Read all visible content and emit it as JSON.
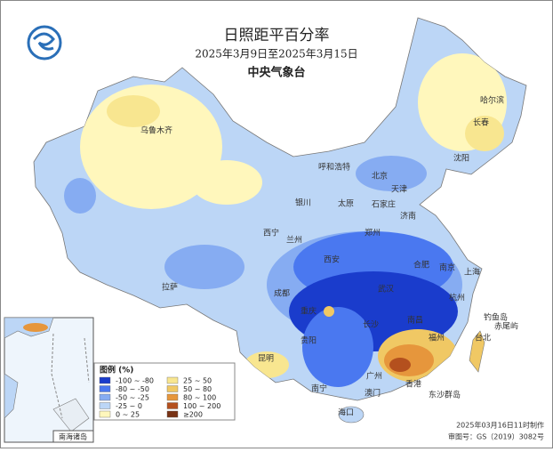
{
  "header": {
    "title": "日照距平百分率",
    "period": "2025年3月9日至2025年3月15日",
    "agency": "中央气象台"
  },
  "legend": {
    "title": "图例 (%)",
    "items": [
      {
        "label": "-100 ~ -80",
        "color": "#1a3ccc"
      },
      {
        "label": "-80 ~ -50",
        "color": "#4a78f0"
      },
      {
        "label": "-50 ~ -25",
        "color": "#86acf2"
      },
      {
        "label": "-25 ~ 0",
        "color": "#bcd6f6"
      },
      {
        "label": "0 ~ 25",
        "color": "#fff7bc"
      },
      {
        "label": "25 ~ 50",
        "color": "#f8e690"
      },
      {
        "label": "50 ~ 80",
        "color": "#f0c864"
      },
      {
        "label": "80 ~ 100",
        "color": "#e6963c"
      },
      {
        "label": "100 ~ 200",
        "color": "#b4501e"
      },
      {
        "label": "≥200",
        "color": "#783214"
      }
    ]
  },
  "cities": [
    "乌鲁木齐",
    "哈尔滨",
    "长春",
    "沈阳",
    "呼和浩特",
    "北京",
    "天津",
    "银川",
    "太原",
    "石家庄",
    "济南",
    "西宁",
    "兰州",
    "郑州",
    "西安",
    "合肥",
    "南京",
    "上海",
    "拉萨",
    "成都",
    "武汉",
    "杭州",
    "重庆",
    "长沙",
    "南昌",
    "贵阳",
    "福州",
    "台北",
    "昆明",
    "南宁",
    "广州",
    "澳门",
    "香港",
    "海口",
    "东沙群岛",
    "钓鱼岛",
    "赤尾屿"
  ],
  "inset": {
    "label": "南海诸岛"
  },
  "footer": {
    "made": "2025年03月16日11时制作",
    "approval": "审图号：GS（2019）3082号"
  }
}
